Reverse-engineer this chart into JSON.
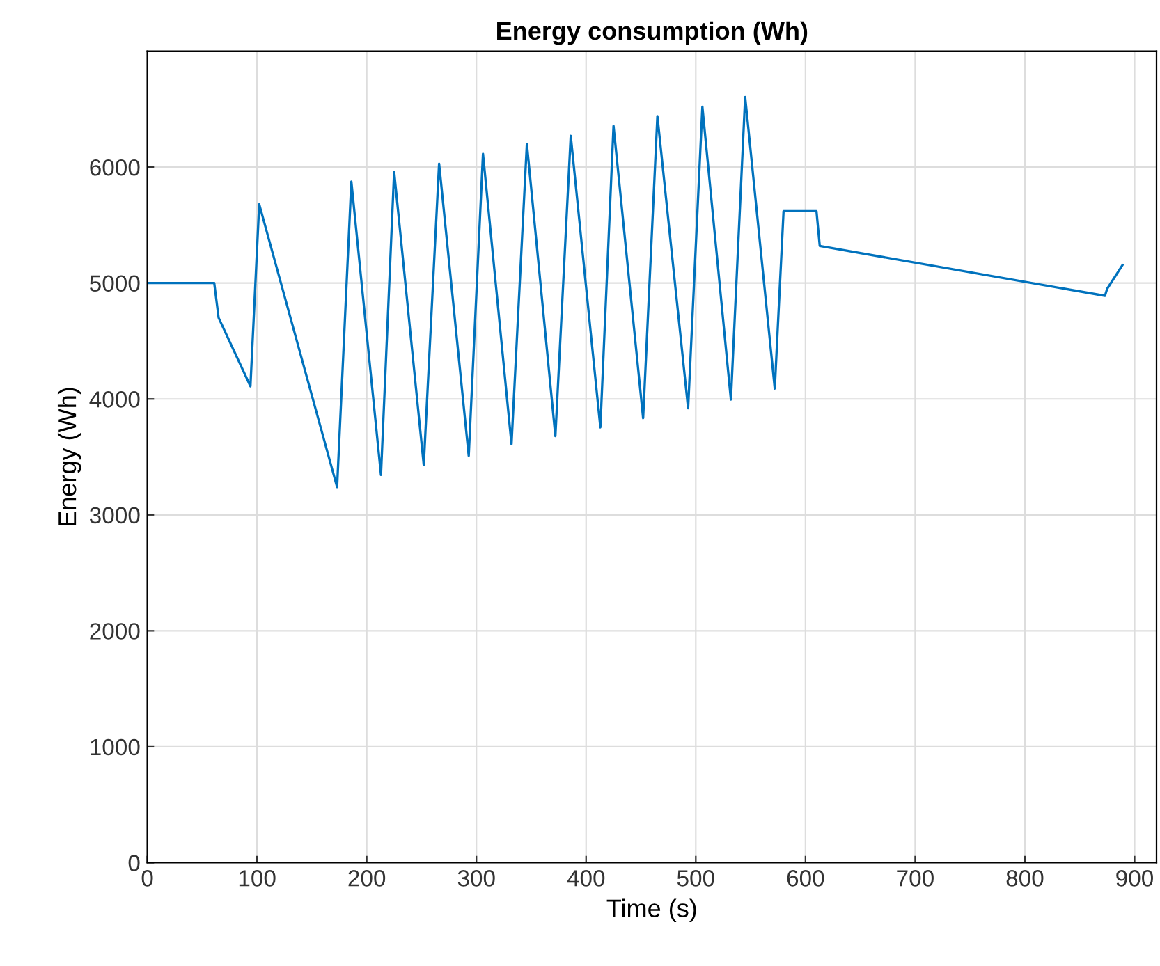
{
  "chart_data": {
    "type": "line",
    "title": "Energy consumption (Wh)",
    "xlabel": "Time (s)",
    "ylabel": "Energy (Wh)",
    "xlim": [
      0,
      920
    ],
    "ylim": [
      0,
      7000
    ],
    "xticks": [
      0,
      100,
      200,
      300,
      400,
      500,
      600,
      700,
      800,
      900
    ],
    "yticks": [
      0,
      1000,
      2000,
      3000,
      4000,
      5000,
      6000
    ],
    "grid": true,
    "legend": false,
    "series": [
      {
        "color": "#0072bd",
        "x": [
          0,
          61,
          65,
          94,
          102,
          173,
          186,
          213,
          225,
          252,
          266,
          293,
          306,
          332,
          346,
          372,
          386,
          413,
          425,
          452,
          465,
          493,
          506,
          532,
          545,
          572,
          580,
          610,
          613,
          873,
          875,
          889
        ],
        "values": [
          5000,
          5000,
          4700,
          4110,
          5680,
          3240,
          5875,
          3345,
          5960,
          3430,
          6030,
          3510,
          6115,
          3610,
          6200,
          3680,
          6270,
          3755,
          6355,
          3835,
          6440,
          3920,
          6520,
          3995,
          6605,
          4090,
          5620,
          5620,
          5320,
          4890,
          4950,
          5155
        ]
      }
    ]
  }
}
